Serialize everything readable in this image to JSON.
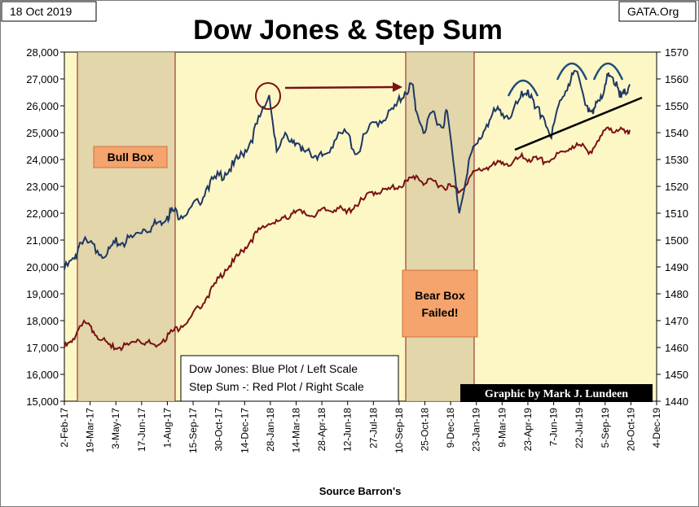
{
  "header": {
    "date": "18 Oct 2019",
    "site": "GATA.Org",
    "title": "Dow Jones & Step Sum"
  },
  "chart_data": {
    "type": "line",
    "title": "Dow Jones & Step Sum",
    "xlabel": "Source Barron's",
    "x_range": [
      "2017-02-02",
      "2019-12-04"
    ],
    "x_ticks": [
      "2-Feb-17",
      "19-Mar-17",
      "3-May-17",
      "17-Jun-17",
      "1-Aug-17",
      "15-Sep-17",
      "30-Oct-17",
      "14-Dec-17",
      "28-Jan-18",
      "14-Mar-18",
      "28-Apr-18",
      "12-Jun-18",
      "27-Jul-18",
      "10-Sep-18",
      "25-Oct-18",
      "9-Dec-18",
      "23-Jan-19",
      "9-Mar-19",
      "23-Apr-19",
      "7-Jun-19",
      "22-Jul-19",
      "5-Sep-19",
      "20-Oct-19",
      "4-Dec-19"
    ],
    "y_left": {
      "min": 15000,
      "max": 28000,
      "ticks": [
        "15,000",
        "16,000",
        "17,000",
        "18,000",
        "19,000",
        "20,000",
        "21,000",
        "22,000",
        "23,000",
        "24,000",
        "25,000",
        "26,000",
        "27,000",
        "28,000"
      ]
    },
    "y_right": {
      "min": 1440,
      "max": 1570,
      "ticks": [
        "1440",
        "1450",
        "1460",
        "1470",
        "1480",
        "1490",
        "1500",
        "1510",
        "1520",
        "1530",
        "1540",
        "1550",
        "1560",
        "1570"
      ]
    },
    "grid": "off",
    "series": [
      {
        "name": "Dow Jones",
        "axis": "left",
        "color": "#1f3864",
        "x": [
          "2017-02-02",
          "2017-02-20",
          "2017-03-01",
          "2017-03-15",
          "2017-04-01",
          "2017-04-18",
          "2017-05-01",
          "2017-05-15",
          "2017-06-01",
          "2017-06-20",
          "2017-07-05",
          "2017-07-20",
          "2017-08-01",
          "2017-08-10",
          "2017-08-25",
          "2017-09-10",
          "2017-09-25",
          "2017-10-10",
          "2017-10-25",
          "2017-11-10",
          "2017-11-25",
          "2017-12-10",
          "2017-12-25",
          "2018-01-10",
          "2018-01-26",
          "2018-02-08",
          "2018-02-26",
          "2018-03-10",
          "2018-03-23",
          "2018-04-05",
          "2018-04-20",
          "2018-05-03",
          "2018-05-20",
          "2018-06-10",
          "2018-06-28",
          "2018-07-15",
          "2018-08-01",
          "2018-08-20",
          "2018-09-05",
          "2018-09-20",
          "2018-10-03",
          "2018-10-10",
          "2018-10-25",
          "2018-11-08",
          "2018-11-23",
          "2018-12-03",
          "2018-12-24",
          "2019-01-10",
          "2019-01-25",
          "2019-02-10",
          "2019-02-25",
          "2019-03-10",
          "2019-03-25",
          "2019-04-10",
          "2019-04-23",
          "2019-05-05",
          "2019-05-20",
          "2019-06-03",
          "2019-06-18",
          "2019-07-03",
          "2019-07-15",
          "2019-08-05",
          "2019-08-15",
          "2019-08-25",
          "2019-09-05",
          "2019-09-12",
          "2019-09-25",
          "2019-10-03",
          "2019-10-10",
          "2019-10-18"
        ],
        "values": [
          19900,
          20300,
          20900,
          20900,
          20600,
          20500,
          20900,
          20900,
          21100,
          21400,
          21500,
          21700,
          21900,
          22100,
          21900,
          22200,
          22400,
          23000,
          23300,
          23500,
          23800,
          24200,
          24700,
          25600,
          26400,
          24300,
          24900,
          24700,
          24300,
          24400,
          24000,
          24200,
          24700,
          25000,
          24200,
          25000,
          25400,
          25600,
          26000,
          26500,
          26800,
          25800,
          25000,
          25800,
          25200,
          25800,
          22000,
          24000,
          24600,
          25300,
          25800,
          25700,
          25600,
          26300,
          26600,
          25900,
          25600,
          24800,
          26200,
          26800,
          27300,
          26000,
          25700,
          26200,
          26800,
          27100,
          26900,
          26300,
          26500,
          26800
        ]
      },
      {
        "name": "Step Sum",
        "axis": "right",
        "color": "#7b1113",
        "x": [
          "2017-02-02",
          "2017-02-15",
          "2017-03-01",
          "2017-03-12",
          "2017-03-25",
          "2017-04-10",
          "2017-04-25",
          "2017-05-10",
          "2017-05-25",
          "2017-06-10",
          "2017-06-25",
          "2017-07-10",
          "2017-07-25",
          "2017-08-10",
          "2017-08-25",
          "2017-09-10",
          "2017-09-25",
          "2017-10-10",
          "2017-10-25",
          "2017-11-10",
          "2017-11-25",
          "2017-12-10",
          "2017-12-25",
          "2018-01-10",
          "2018-01-25",
          "2018-02-10",
          "2018-02-25",
          "2018-03-10",
          "2018-03-25",
          "2018-04-10",
          "2018-04-25",
          "2018-05-10",
          "2018-05-25",
          "2018-06-10",
          "2018-06-25",
          "2018-07-10",
          "2018-07-25",
          "2018-08-10",
          "2018-08-25",
          "2018-09-10",
          "2018-09-25",
          "2018-10-10",
          "2018-10-25",
          "2018-11-10",
          "2018-11-25",
          "2018-12-10",
          "2018-12-25",
          "2019-01-10",
          "2019-01-25",
          "2019-02-10",
          "2019-02-25",
          "2019-03-10",
          "2019-03-25",
          "2019-04-10",
          "2019-04-25",
          "2019-05-10",
          "2019-05-25",
          "2019-06-10",
          "2019-06-25",
          "2019-07-10",
          "2019-07-25",
          "2019-08-10",
          "2019-08-25",
          "2019-09-10",
          "2019-09-25",
          "2019-10-10",
          "2019-10-18"
        ],
        "values": [
          1460,
          1462,
          1468,
          1469,
          1466,
          1463,
          1460,
          1460,
          1461,
          1463,
          1462,
          1461,
          1463,
          1466,
          1468,
          1471,
          1475,
          1479,
          1484,
          1489,
          1492,
          1496,
          1500,
          1504,
          1506,
          1507,
          1508,
          1511,
          1510,
          1509,
          1511,
          1511,
          1512,
          1510,
          1513,
          1515,
          1518,
          1518,
          1519,
          1520,
          1522,
          1524,
          1521,
          1522,
          1520,
          1520,
          1518,
          1523,
          1526,
          1527,
          1528,
          1529,
          1528,
          1531,
          1530,
          1530,
          1529,
          1531,
          1533,
          1535,
          1535,
          1533,
          1537,
          1542,
          1541,
          1540,
          1541
        ]
      }
    ]
  },
  "annotations": {
    "bull_box": "Bull Box",
    "bear_box_line1": "Bear Box",
    "bear_box_line2": "Failed!",
    "legend_line1": "Dow Jones: Blue Plot / Left Scale",
    "legend_line2": "Step Sum -: Red Plot / Right Scale",
    "credit": "Graphic by Mark J. Lundeen",
    "colors": {
      "plot_bg": "#fdf7c6",
      "shade": "#ddd0a4",
      "box_fill": "#f4a46c",
      "box_border": "#d0703e",
      "arrow": "#7b1113",
      "arc": "#1f4e79",
      "trend": "#000000"
    }
  }
}
